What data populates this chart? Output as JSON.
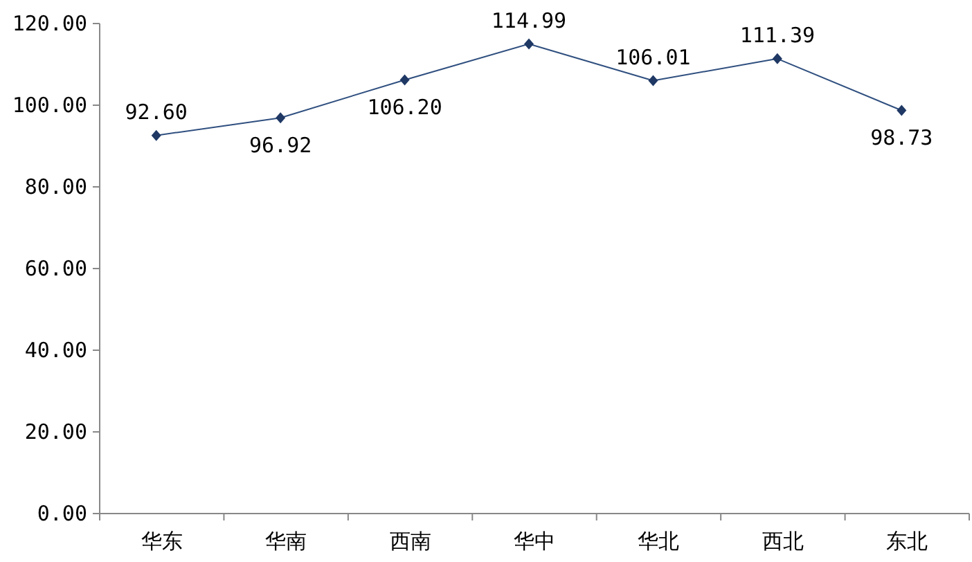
{
  "chart_data": {
    "type": "line",
    "categories": [
      "华东",
      "华南",
      "西南",
      "华中",
      "华北",
      "西北",
      "东北"
    ],
    "series": [
      {
        "color": "#2f4f7f",
        "values": [
          92.6,
          96.92,
          106.2,
          114.99,
          106.01,
          111.39,
          98.73
        ]
      }
    ],
    "value_labels": [
      "92.60",
      "96.92",
      "106.20",
      "114.99",
      "106.01",
      "111.39",
      "98.73"
    ],
    "ylim": [
      0,
      120
    ],
    "yticks": [
      {
        "value": 0,
        "label": "0.00"
      },
      {
        "value": 20,
        "label": "20.00"
      },
      {
        "value": 40,
        "label": "40.00"
      },
      {
        "value": 60,
        "label": "60.00"
      },
      {
        "value": 80,
        "label": "80.00"
      },
      {
        "value": 100,
        "label": "100.00"
      },
      {
        "value": 120,
        "label": "120.00"
      }
    ],
    "marker": "diamond",
    "grid": false
  }
}
